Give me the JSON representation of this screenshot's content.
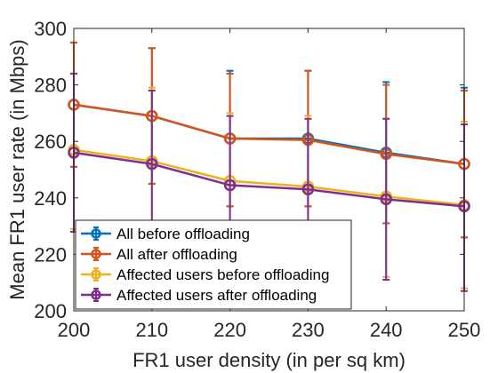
{
  "chart_data": {
    "type": "line",
    "title": "",
    "xlabel": "FR1 user density (in per sq km)",
    "ylabel": "Mean FR1 user rate (in Mbps)",
    "x": [
      200,
      210,
      220,
      230,
      240,
      250
    ],
    "x_ticks": [
      "200",
      "210",
      "220",
      "230",
      "240",
      "250"
    ],
    "y_ticks": [
      "200",
      "220",
      "240",
      "260",
      "280",
      "300"
    ],
    "xlim": [
      200,
      250
    ],
    "ylim": [
      200,
      300
    ],
    "grid": false,
    "legend_position": "bottom-left",
    "error_bars": true,
    "series": [
      {
        "name": "All before offloading",
        "color": "#0072BD",
        "values": [
          273,
          269,
          261,
          261,
          256,
          252
        ],
        "lower": [
          251,
          245,
          237,
          237,
          231,
          226
        ],
        "upper": [
          295,
          293,
          285,
          285,
          281,
          279
        ]
      },
      {
        "name": "All after offloading",
        "color": "#D95319",
        "values": [
          273,
          269,
          261,
          260.5,
          255.5,
          252
        ],
        "lower": [
          251,
          245,
          237,
          237,
          231,
          226
        ],
        "upper": [
          295,
          293,
          284,
          285,
          280,
          278
        ]
      },
      {
        "name": "Affected users before offloading",
        "color": "#EDB120",
        "values": [
          257,
          253,
          246,
          244,
          240.5,
          237.5
        ],
        "lower": [
          229,
          226,
          222,
          219,
          212,
          208
        ],
        "upper": [
          284,
          279,
          270,
          269,
          268,
          267
        ]
      },
      {
        "name": "Affected users after offloading",
        "color": "#7E2F8E",
        "values": [
          256,
          252,
          244.5,
          243,
          239.5,
          237
        ],
        "lower": [
          228,
          225,
          221,
          218,
          211,
          207
        ],
        "upper": [
          284,
          278,
          269,
          268,
          268,
          266
        ]
      }
    ]
  }
}
